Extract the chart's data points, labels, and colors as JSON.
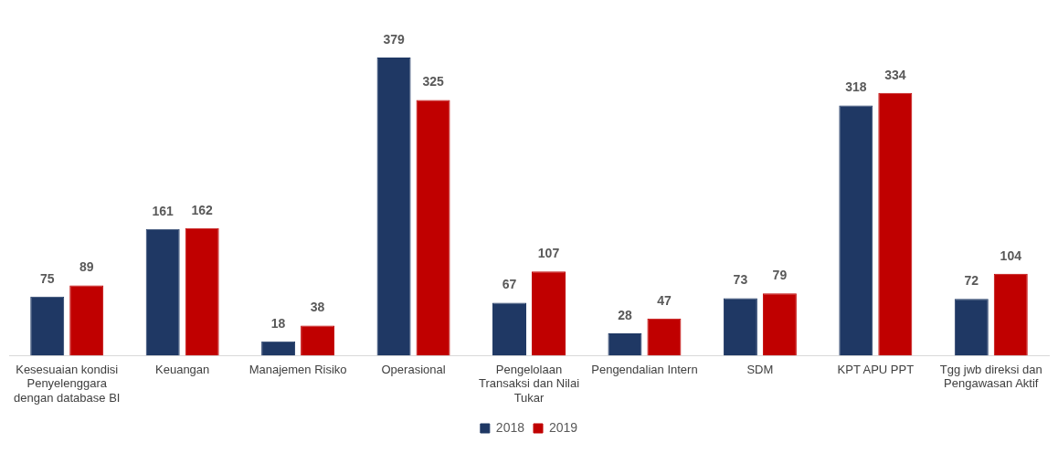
{
  "chart_data": {
    "type": "bar",
    "categories": [
      "Kesesuaian kondisi Penyelenggara dengan database BI",
      "Keuangan",
      "Manajemen Risiko",
      "Operasional",
      "Pengelolaan Transaksi dan Nilai Tukar",
      "Pengendalian Intern",
      "SDM",
      "KPT APU PPT",
      "Tgg jwb direksi dan Pengawasan Aktif"
    ],
    "series": [
      {
        "name": "2018",
        "color": "#1f3864",
        "values": [
          75,
          161,
          18,
          379,
          67,
          28,
          73,
          318,
          72
        ]
      },
      {
        "name": "2019",
        "color": "#c00000",
        "values": [
          89,
          162,
          38,
          325,
          107,
          47,
          79,
          334,
          104
        ]
      }
    ],
    "data_labels": true,
    "legend": "bottom",
    "grid": false
  }
}
